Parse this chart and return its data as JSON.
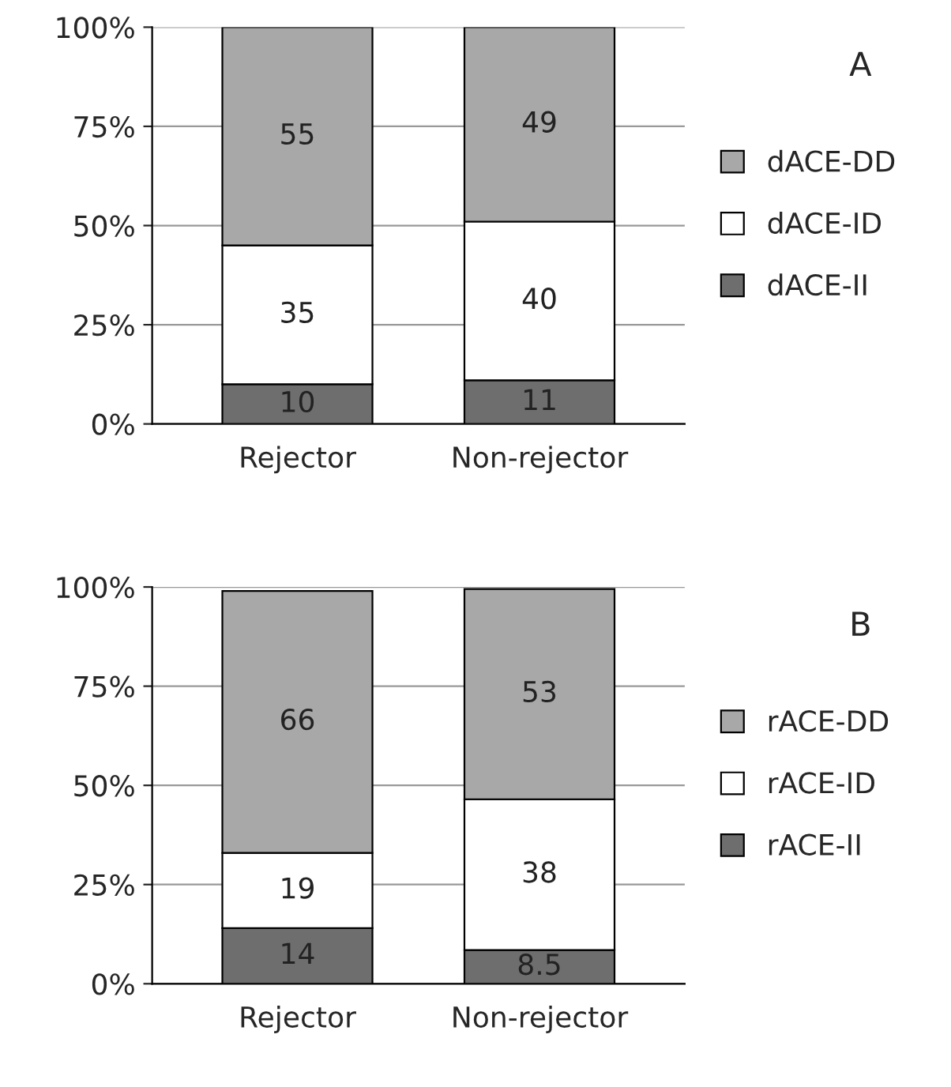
{
  "chart_data": [
    {
      "type": "bar",
      "stacked": true,
      "categories": [
        "Rejector",
        "Non-rejector"
      ],
      "series": [
        {
          "name": "dACE-II",
          "color": "#6e6e6e",
          "values": [
            10,
            11
          ]
        },
        {
          "name": "dACE-ID",
          "color": "#ffffff",
          "values": [
            35,
            40
          ]
        },
        {
          "name": "dACE-DD",
          "color": "#a8a8a8",
          "values": [
            55,
            49
          ]
        }
      ],
      "ylim": [
        0,
        100
      ],
      "yticks": [
        {
          "value": 0,
          "label": "0%"
        },
        {
          "value": 25,
          "label": "25%"
        },
        {
          "value": 50,
          "label": "50%"
        },
        {
          "value": 75,
          "label": "75%"
        },
        {
          "value": 100,
          "label": "100%"
        }
      ],
      "grid": "y",
      "legend": "right",
      "data_labels": true,
      "annotations": [
        "A"
      ]
    },
    {
      "type": "bar",
      "stacked": true,
      "categories": [
        "Rejector",
        "Non-rejector"
      ],
      "series": [
        {
          "name": "rACE-II",
          "color": "#6e6e6e",
          "values": [
            14,
            8.5
          ]
        },
        {
          "name": "rACE-ID",
          "color": "#ffffff",
          "values": [
            19,
            38
          ]
        },
        {
          "name": "rACE-DD",
          "color": "#a8a8a8",
          "values": [
            66,
            53
          ]
        }
      ],
      "ylim": [
        0,
        100
      ],
      "yticks": [
        {
          "value": 0,
          "label": "0%"
        },
        {
          "value": 25,
          "label": "25%"
        },
        {
          "value": 50,
          "label": "50%"
        },
        {
          "value": 75,
          "label": "75%"
        },
        {
          "value": 100,
          "label": "100%"
        }
      ],
      "grid": "y",
      "legend": "right",
      "data_labels": true,
      "annotations": [
        "B"
      ]
    }
  ]
}
